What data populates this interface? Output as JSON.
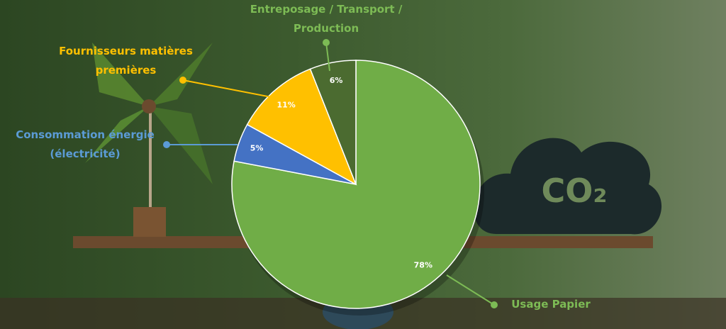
{
  "chart_data": {
    "type": "pie",
    "categories": [
      "Usage Papier",
      "Consommation énergie (électricité)",
      "Fournisseurs matières premières",
      "Entreposage / Transport / Production"
    ],
    "values": [
      78,
      5,
      11,
      6
    ],
    "value_labels": [
      "78%",
      "5%",
      "11%",
      "6%"
    ],
    "colors": [
      "#70ad47",
      "#4472c4",
      "#ffc000",
      "#4b6b30"
    ],
    "label_colors": [
      "#7dbb55",
      "#5b9bd5",
      "#ffc000",
      "#7dbb55"
    ]
  },
  "decoration": {
    "cloud_label": "CO₂"
  }
}
